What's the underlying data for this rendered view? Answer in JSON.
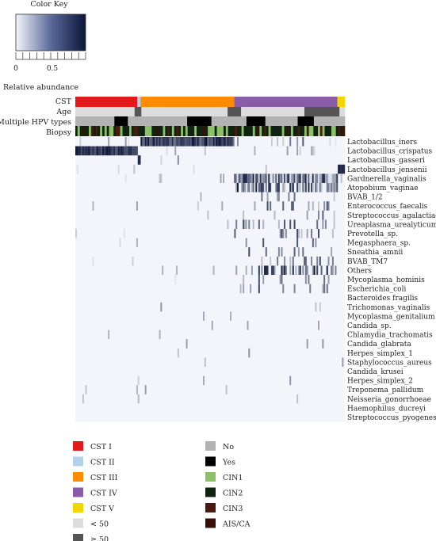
{
  "chart_data": {
    "type": "heatmap",
    "color_key": {
      "title": "Color Key",
      "tick_labels": [
        "0",
        "0.5"
      ],
      "xlabel": "Relative abundance",
      "color_low": "#f4f6fb",
      "color_high": "#0b1538"
    },
    "annotation_tracks": [
      "CST",
      "Age",
      "Multiple HPV types",
      "Biopsy"
    ],
    "annotation_segments": {
      "CST": [
        {
          "category": "CST I",
          "fraction": 0.23
        },
        {
          "category": "CST II",
          "fraction": 0.012
        },
        {
          "category": "CST III",
          "fraction": 0.348
        },
        {
          "category": "CST IV",
          "fraction": 0.382
        },
        {
          "category": "CST V",
          "fraction": 0.028
        }
      ],
      "Age": [
        {
          "category": "< 50",
          "fraction": 0.22
        },
        {
          "category": ">= 50",
          "fraction": 0.025
        },
        {
          "category": "< 50",
          "fraction": 0.32
        },
        {
          "category": ">= 50",
          "fraction": 0.05
        },
        {
          "category": "< 50",
          "fraction": 0.235
        },
        {
          "category": ">= 50",
          "fraction": 0.13
        },
        {
          "category": "< 50",
          "fraction": 0.02
        }
      ],
      "Multiple HPV types": [
        {
          "category": "No",
          "fraction": 0.145
        },
        {
          "category": "Yes",
          "fraction": 0.05
        },
        {
          "category": "No",
          "fraction": 0.22
        },
        {
          "category": "Yes",
          "fraction": 0.09
        },
        {
          "category": "No",
          "fraction": 0.13
        },
        {
          "category": "Yes",
          "fraction": 0.07
        },
        {
          "category": "No",
          "fraction": 0.12
        },
        {
          "category": "Yes",
          "fraction": 0.06
        },
        {
          "category": "No",
          "fraction": 0.115
        }
      ]
    },
    "rows": [
      "Lactobacillus_iners",
      "Lactobacillus_crispatus",
      "Lactobacillus_gasseri",
      "Lactobacillus_jensenii",
      "Gardnerella_vaginalis",
      "Atopobium_vaginae",
      "BVAB_1/2",
      "Enterococcus_faecalis",
      "Streptococcus_agalactiae",
      "Ureaplasma_urealyticum",
      "Prevotella_sp.",
      "Megasphaera_sp.",
      "Sneathia_amnii",
      "BVAB_TM7",
      "Others",
      "Mycoplasma_hominis",
      "Escherichia_coli",
      "Bacteroides fragilis",
      "Trichomonas_vaginalis",
      "Mycoplasma_genitalium",
      "Candida_sp.",
      "Chlamydia_trachomatis",
      "Candida_glabrata",
      "Herpes_simplex_1",
      "Staphylococcus_aureus",
      "Candida_krusei",
      "Herpes_simplex_2",
      "Treponema_pallidum",
      "Neisseria_gonorrhoeae",
      "Haemophilus_ducreyi",
      "Streptococcus_pyogenes"
    ],
    "row_band_abundance": [
      {
        "row": "Lactobacillus_iners",
        "CST I": 0.05,
        "CST III": 0.9,
        "CST IV": 0.08
      },
      {
        "row": "Lactobacillus_crispatus",
        "CST I": 0.9,
        "CST III": 0.03,
        "CST IV": 0.02
      },
      {
        "row": "Lactobacillus_gasseri",
        "CST I": 0.0,
        "CST III": 0.0,
        "CST IV": 0.0
      },
      {
        "row": "Lactobacillus_jensenii",
        "CST V": 0.9
      },
      {
        "row": "Gardnerella_vaginalis",
        "CST IV": 0.55
      },
      {
        "row": "Atopobium_vaginae",
        "CST IV": 0.4
      }
    ],
    "legend": [
      {
        "label": "CST I",
        "color": "#e31a1c"
      },
      {
        "label": "CST II",
        "color": "#b4d1ec"
      },
      {
        "label": "CST III",
        "color": "#ff8c00"
      },
      {
        "label": "CST IV",
        "color": "#8a5ca8"
      },
      {
        "label": "CST V",
        "color": "#f2d600"
      },
      {
        "label": "< 50",
        "color": "#dcdcdc"
      },
      {
        "label": "≥ 50",
        "color": "#555555"
      },
      {
        "label": "No",
        "color": "#b3b3b3"
      },
      {
        "label": "Yes",
        "color": "#000000"
      },
      {
        "label": "CIN1",
        "color": "#8cc168"
      },
      {
        "label": "CIN2",
        "color": "#0f2410"
      },
      {
        "label": "CIN3",
        "color": "#4a1a10"
      },
      {
        "label": "AIS/CA",
        "color": "#3a0f05"
      }
    ]
  }
}
